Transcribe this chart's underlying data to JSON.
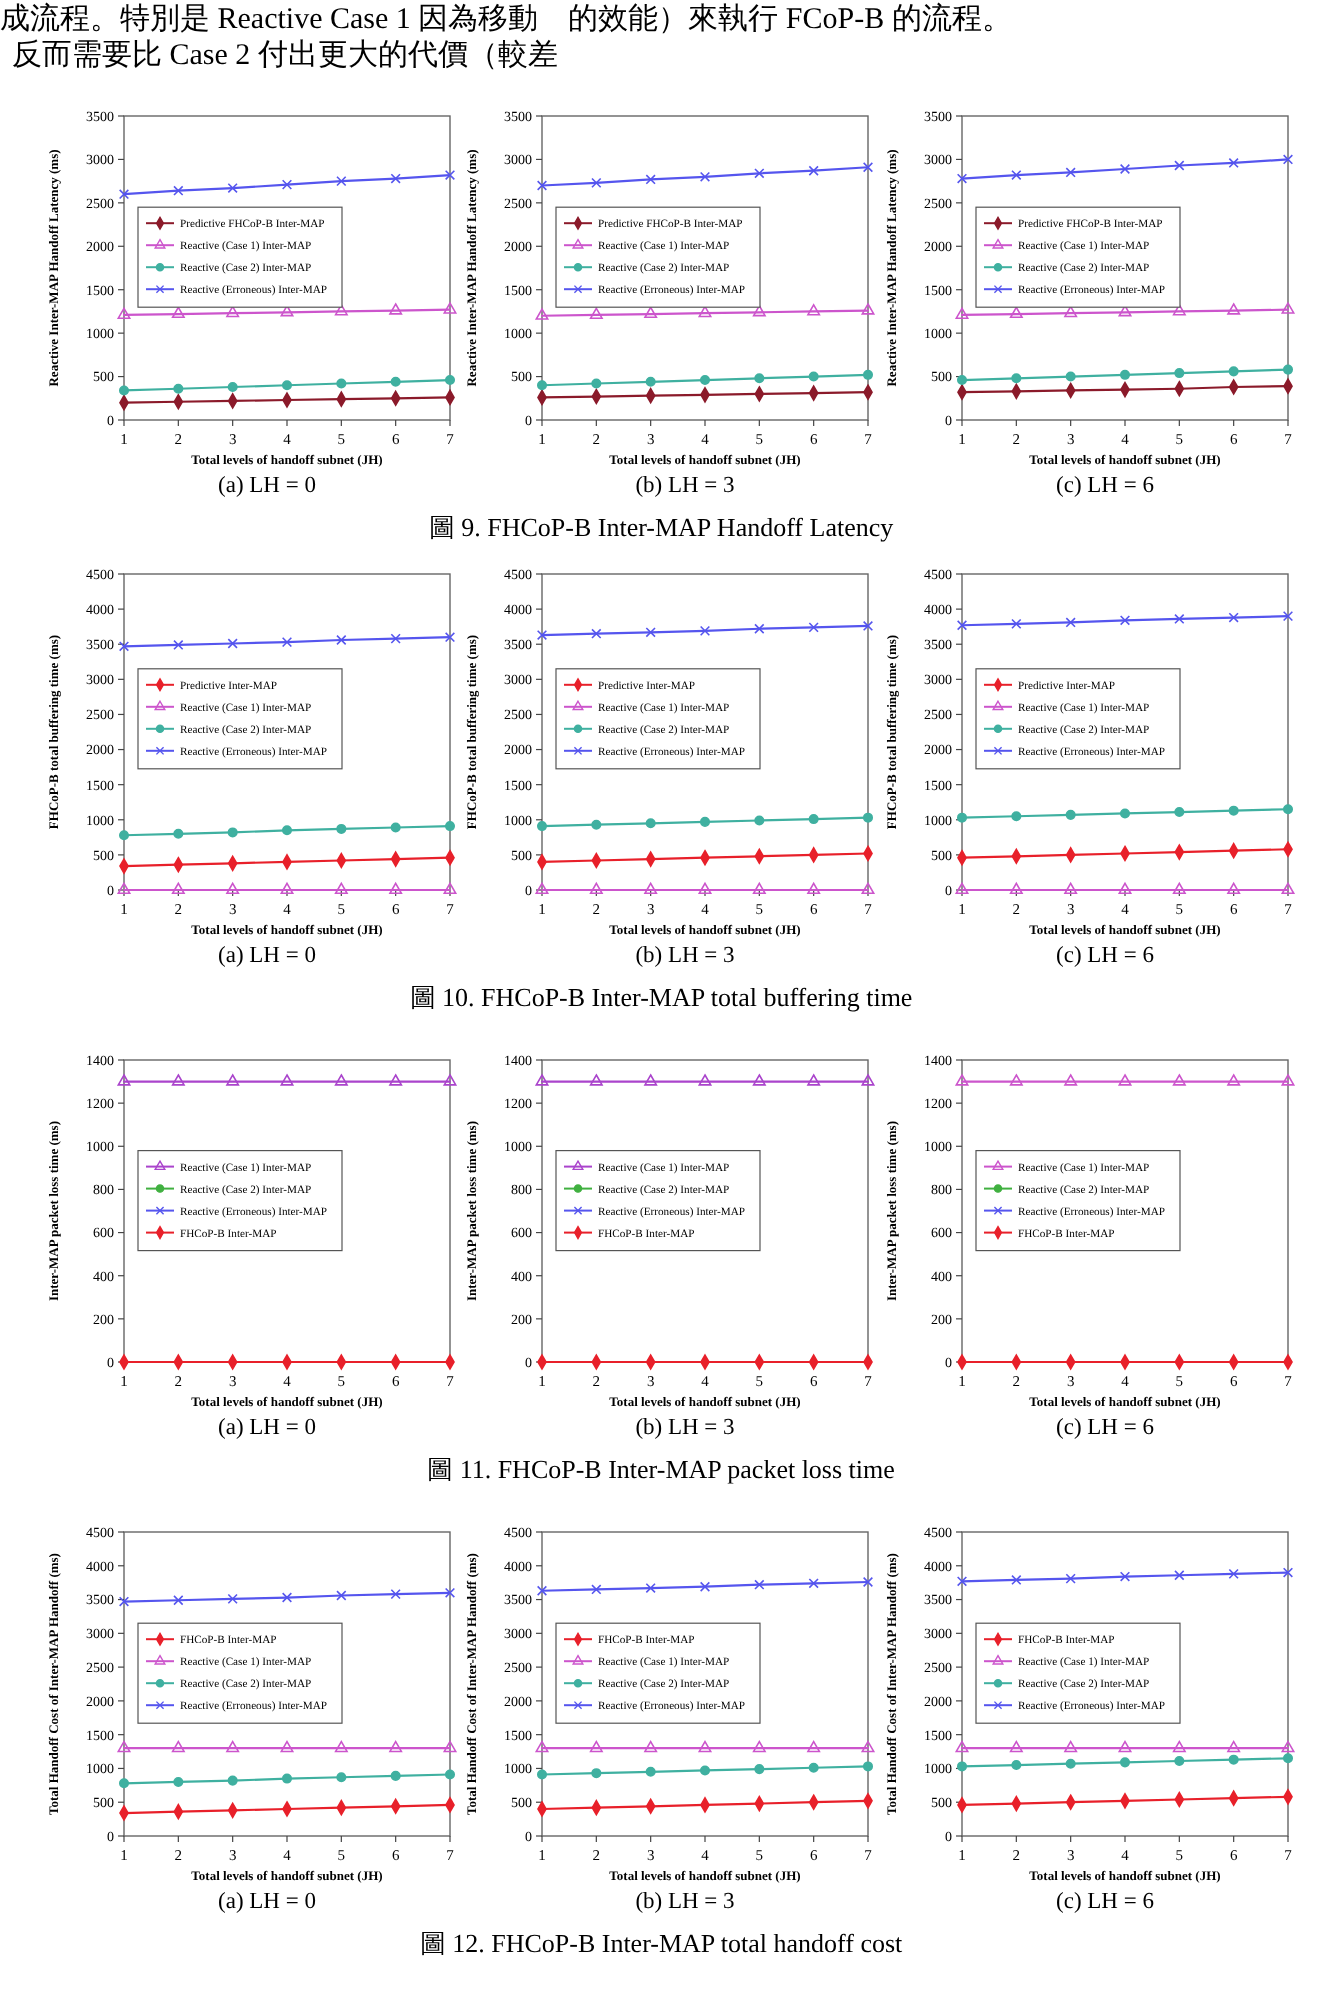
{
  "chart_data": [
    {
      "type": "other",
      "annotations": [
        "成流程。特別是 Reactive Case 1 因為移動　的效能）來執行 FCoP-B 的流程。",
        "反而需要比 Case 2 付出更大的代價（較差"
      ]
    },
    {
      "type": "line",
      "subtitle": "(a) LH = 0",
      "xlabel": "Total levels of handoff subnet (JH)",
      "ylabel": "Reactive Inter-MAP Handoff Latency (ms)",
      "x": [
        1,
        2,
        3,
        4,
        5,
        6,
        7
      ],
      "xlim": [
        1,
        7
      ],
      "xticks": [
        1,
        2,
        3,
        4,
        5,
        6,
        7
      ],
      "ylim": [
        0,
        3500
      ],
      "yticks": [
        0,
        500,
        1000,
        1500,
        2000,
        2500,
        3000,
        3500
      ],
      "legend": "center left",
      "series": [
        {
          "name": "Predictive FHCoP-B Inter-MAP",
          "color": "#8b1a2a",
          "marker": "diamond",
          "values": [
            200,
            210,
            220,
            230,
            240,
            250,
            260
          ]
        },
        {
          "name": "Reactive (Case 1) Inter-MAP",
          "color": "#cc55cc",
          "marker": "triangle",
          "values": [
            1210,
            1220,
            1230,
            1240,
            1250,
            1260,
            1270
          ]
        },
        {
          "name": "Reactive (Case 2) Inter-MAP",
          "color": "#3fb0a0",
          "marker": "circle",
          "values": [
            340,
            360,
            380,
            400,
            420,
            440,
            460
          ]
        },
        {
          "name": "Reactive (Erroneous) Inter-MAP",
          "color": "#5555ee",
          "marker": "cross",
          "values": [
            2600,
            2640,
            2670,
            2710,
            2750,
            2780,
            2820
          ]
        }
      ]
    },
    {
      "type": "line",
      "subtitle": "(b) LH = 3",
      "xlabel": "Total levels of handoff subnet (JH)",
      "ylabel": "Reactive Inter-MAP Handoff Latency (ms)",
      "x": [
        1,
        2,
        3,
        4,
        5,
        6,
        7
      ],
      "xlim": [
        1,
        7
      ],
      "xticks": [
        1,
        2,
        3,
        4,
        5,
        6,
        7
      ],
      "ylim": [
        0,
        3500
      ],
      "yticks": [
        0,
        500,
        1000,
        1500,
        2000,
        2500,
        3000,
        3500
      ],
      "legend": "center left",
      "annotations": [
        "圖 9. FHCoP-B Inter-MAP Handoff Latency"
      ],
      "series": [
        {
          "name": "Predictive FHCoP-B Inter-MAP",
          "color": "#8b1a2a",
          "marker": "diamond",
          "values": [
            260,
            270,
            280,
            290,
            300,
            310,
            320
          ]
        },
        {
          "name": "Reactive (Case 1) Inter-MAP",
          "color": "#cc55cc",
          "marker": "triangle",
          "values": [
            1200,
            1210,
            1220,
            1230,
            1240,
            1250,
            1260
          ]
        },
        {
          "name": "Reactive (Case 2) Inter-MAP",
          "color": "#3fb0a0",
          "marker": "circle",
          "values": [
            400,
            420,
            440,
            460,
            480,
            500,
            520
          ]
        },
        {
          "name": "Reactive (Erroneous) Inter-MAP",
          "color": "#5555ee",
          "marker": "cross",
          "values": [
            2700,
            2730,
            2770,
            2800,
            2840,
            2870,
            2910
          ]
        }
      ]
    },
    {
      "type": "line",
      "subtitle": "(c) LH = 6",
      "xlabel": "Total levels of handoff subnet (JH)",
      "ylabel": "Reactive Inter-MAP Handoff Latency (ms)",
      "x": [
        1,
        2,
        3,
        4,
        5,
        6,
        7
      ],
      "xlim": [
        1,
        7
      ],
      "xticks": [
        1,
        2,
        3,
        4,
        5,
        6,
        7
      ],
      "ylim": [
        0,
        3500
      ],
      "yticks": [
        0,
        500,
        1000,
        1500,
        2000,
        2500,
        3000,
        3500
      ],
      "legend": "center left",
      "series": [
        {
          "name": "Predictive FHCoP-B Inter-MAP",
          "color": "#8b1a2a",
          "marker": "diamond",
          "values": [
            320,
            330,
            340,
            350,
            360,
            380,
            390
          ]
        },
        {
          "name": "Reactive (Case 1) Inter-MAP",
          "color": "#cc55cc",
          "marker": "triangle",
          "values": [
            1210,
            1220,
            1230,
            1240,
            1250,
            1260,
            1270
          ]
        },
        {
          "name": "Reactive (Case 2) Inter-MAP",
          "color": "#3fb0a0",
          "marker": "circle",
          "values": [
            460,
            480,
            500,
            520,
            540,
            560,
            580
          ]
        },
        {
          "name": "Reactive (Erroneous) Inter-MAP",
          "color": "#5555ee",
          "marker": "cross",
          "values": [
            2780,
            2820,
            2850,
            2890,
            2930,
            2960,
            3000
          ]
        }
      ]
    },
    {
      "type": "line",
      "subtitle": "(a) LH = 0",
      "xlabel": "Total levels of handoff subnet (JH)",
      "ylabel": "FHCoP-B total buffering time (ms)",
      "x": [
        1,
        2,
        3,
        4,
        5,
        6,
        7
      ],
      "xlim": [
        1,
        7
      ],
      "xticks": [
        1,
        2,
        3,
        4,
        5,
        6,
        7
      ],
      "ylim": [
        0,
        4500
      ],
      "yticks": [
        0,
        500,
        1000,
        1500,
        2000,
        2500,
        3000,
        3500,
        4000,
        4500
      ],
      "legend": "center left",
      "series": [
        {
          "name": "Predictive Inter-MAP",
          "color": "#e8202a",
          "marker": "diamond",
          "values": [
            340,
            360,
            380,
            400,
            420,
            440,
            460
          ]
        },
        {
          "name": "Reactive (Case 1) Inter-MAP",
          "color": "#cc55cc",
          "marker": "triangle",
          "values": [
            0,
            0,
            0,
            0,
            0,
            0,
            0
          ]
        },
        {
          "name": "Reactive (Case 2) Inter-MAP",
          "color": "#3fb0a0",
          "marker": "circle",
          "values": [
            780,
            800,
            820,
            850,
            870,
            890,
            910
          ]
        },
        {
          "name": "Reactive (Erroneous) Inter-MAP",
          "color": "#5555ee",
          "marker": "cross",
          "values": [
            3470,
            3490,
            3510,
            3530,
            3560,
            3580,
            3600
          ]
        }
      ]
    },
    {
      "type": "line",
      "subtitle": "(b) LH = 3",
      "xlabel": "Total levels of handoff subnet (JH)",
      "ylabel": "FHCoP-B total buffering time (ms)",
      "x": [
        1,
        2,
        3,
        4,
        5,
        6,
        7
      ],
      "xlim": [
        1,
        7
      ],
      "xticks": [
        1,
        2,
        3,
        4,
        5,
        6,
        7
      ],
      "ylim": [
        0,
        4500
      ],
      "yticks": [
        0,
        500,
        1000,
        1500,
        2000,
        2500,
        3000,
        3500,
        4000,
        4500
      ],
      "legend": "center left",
      "annotations": [
        "圖 10. FHCoP-B Inter-MAP total buffering time"
      ],
      "series": [
        {
          "name": "Predictive Inter-MAP",
          "color": "#e8202a",
          "marker": "diamond",
          "values": [
            400,
            420,
            440,
            460,
            480,
            500,
            520
          ]
        },
        {
          "name": "Reactive (Case 1) Inter-MAP",
          "color": "#cc55cc",
          "marker": "triangle",
          "values": [
            0,
            0,
            0,
            0,
            0,
            0,
            0
          ]
        },
        {
          "name": "Reactive (Case 2) Inter-MAP",
          "color": "#3fb0a0",
          "marker": "circle",
          "values": [
            910,
            930,
            950,
            970,
            990,
            1010,
            1030
          ]
        },
        {
          "name": "Reactive (Erroneous) Inter-MAP",
          "color": "#5555ee",
          "marker": "cross",
          "values": [
            3630,
            3650,
            3670,
            3690,
            3720,
            3740,
            3760
          ]
        }
      ]
    },
    {
      "type": "line",
      "subtitle": "(c) LH = 6",
      "xlabel": "Total levels of handoff subnet (JH)",
      "ylabel": "FHCoP-B total buffering time (ms)",
      "x": [
        1,
        2,
        3,
        4,
        5,
        6,
        7
      ],
      "xlim": [
        1,
        7
      ],
      "xticks": [
        1,
        2,
        3,
        4,
        5,
        6,
        7
      ],
      "ylim": [
        0,
        4500
      ],
      "yticks": [
        0,
        500,
        1000,
        1500,
        2000,
        2500,
        3000,
        3500,
        4000,
        4500
      ],
      "legend": "center left",
      "series": [
        {
          "name": "Predictive Inter-MAP",
          "color": "#e8202a",
          "marker": "diamond",
          "values": [
            460,
            480,
            500,
            520,
            540,
            560,
            580
          ]
        },
        {
          "name": "Reactive (Case 1) Inter-MAP",
          "color": "#cc55cc",
          "marker": "triangle",
          "values": [
            0,
            0,
            0,
            0,
            0,
            0,
            0
          ]
        },
        {
          "name": "Reactive (Case 2) Inter-MAP",
          "color": "#3fb0a0",
          "marker": "circle",
          "values": [
            1030,
            1050,
            1070,
            1090,
            1110,
            1130,
            1150
          ]
        },
        {
          "name": "Reactive (Erroneous) Inter-MAP",
          "color": "#5555ee",
          "marker": "cross",
          "values": [
            3770,
            3790,
            3810,
            3840,
            3860,
            3880,
            3900
          ]
        }
      ]
    },
    {
      "type": "line",
      "subtitle": "(a) LH = 0",
      "xlabel": "Total levels of handoff subnet (JH)",
      "ylabel": "Inter-MAP packet loss time (ms)",
      "x": [
        1,
        2,
        3,
        4,
        5,
        6,
        7
      ],
      "xlim": [
        1,
        7
      ],
      "xticks": [
        1,
        2,
        3,
        4,
        5,
        6,
        7
      ],
      "ylim": [
        0,
        1400
      ],
      "yticks": [
        0,
        200,
        400,
        600,
        800,
        1000,
        1200,
        1400
      ],
      "legend": "center left",
      "series": [
        {
          "name": "Reactive (Case 1) Inter-MAP",
          "color": "#aa44cc",
          "marker": "triangle",
          "values": [
            1300,
            1300,
            1300,
            1300,
            1300,
            1300,
            1300
          ]
        },
        {
          "name": "Reactive (Case 2) Inter-MAP",
          "color": "#40b040",
          "marker": "circle",
          "values": [
            null,
            null,
            null,
            null,
            null,
            null,
            null
          ]
        },
        {
          "name": "Reactive (Erroneous) Inter-MAP",
          "color": "#5555ee",
          "marker": "cross",
          "values": [
            null,
            null,
            null,
            null,
            null,
            null,
            null
          ]
        },
        {
          "name": "FHCoP-B Inter-MAP",
          "color": "#e8202a",
          "marker": "diamond",
          "values": [
            0,
            0,
            0,
            0,
            0,
            0,
            0
          ]
        }
      ]
    },
    {
      "type": "line",
      "subtitle": "(b) LH = 3",
      "xlabel": "Total levels of handoff subnet (JH)",
      "ylabel": "Inter-MAP packet loss time (ms)",
      "x": [
        1,
        2,
        3,
        4,
        5,
        6,
        7
      ],
      "xlim": [
        1,
        7
      ],
      "xticks": [
        1,
        2,
        3,
        4,
        5,
        6,
        7
      ],
      "ylim": [
        0,
        1400
      ],
      "yticks": [
        0,
        200,
        400,
        600,
        800,
        1000,
        1200,
        1400
      ],
      "legend": "center left",
      "annotations": [
        "圖 11. FHCoP-B Inter-MAP packet loss time"
      ],
      "series": [
        {
          "name": "Reactive (Case 1) Inter-MAP",
          "color": "#aa44cc",
          "marker": "triangle",
          "values": [
            1300,
            1300,
            1300,
            1300,
            1300,
            1300,
            1300
          ]
        },
        {
          "name": "Reactive (Case 2) Inter-MAP",
          "color": "#40b040",
          "marker": "circle",
          "values": [
            null,
            null,
            null,
            null,
            null,
            null,
            null
          ]
        },
        {
          "name": "Reactive (Erroneous) Inter-MAP",
          "color": "#5555ee",
          "marker": "cross",
          "values": [
            null,
            null,
            null,
            null,
            null,
            null,
            null
          ]
        },
        {
          "name": "FHCoP-B Inter-MAP",
          "color": "#e8202a",
          "marker": "diamond",
          "values": [
            0,
            0,
            0,
            0,
            0,
            0,
            0
          ]
        }
      ]
    },
    {
      "type": "line",
      "subtitle": "(c) LH = 6",
      "xlabel": "Total levels of handoff subnet (JH)",
      "ylabel": "Inter-MAP packet loss time (ms)",
      "x": [
        1,
        2,
        3,
        4,
        5,
        6,
        7
      ],
      "xlim": [
        1,
        7
      ],
      "xticks": [
        1,
        2,
        3,
        4,
        5,
        6,
        7
      ],
      "ylim": [
        0,
        1400
      ],
      "yticks": [
        0,
        200,
        400,
        600,
        800,
        1000,
        1200,
        1400
      ],
      "legend": "center left",
      "series": [
        {
          "name": "Reactive (Case 1) Inter-MAP",
          "color": "#cc55cc",
          "marker": "triangle",
          "values": [
            1300,
            1300,
            1300,
            1300,
            1300,
            1300,
            1300
          ]
        },
        {
          "name": "Reactive (Case 2) Inter-MAP",
          "color": "#40b040",
          "marker": "circle",
          "values": [
            null,
            null,
            null,
            null,
            null,
            null,
            null
          ]
        },
        {
          "name": "Reactive (Erroneous) Inter-MAP",
          "color": "#5555ee",
          "marker": "cross",
          "values": [
            null,
            null,
            null,
            null,
            null,
            null,
            null
          ]
        },
        {
          "name": "FHCoP-B Inter-MAP",
          "color": "#e8202a",
          "marker": "diamond",
          "values": [
            0,
            0,
            0,
            0,
            0,
            0,
            0
          ]
        }
      ]
    },
    {
      "type": "line",
      "subtitle": "(a) LH = 0",
      "xlabel": "Total levels of handoff subnet (JH)",
      "ylabel": "Total Handoff Cost of Inter-MAP Handoff (ms)",
      "x": [
        1,
        2,
        3,
        4,
        5,
        6,
        7
      ],
      "xlim": [
        1,
        7
      ],
      "xticks": [
        1,
        2,
        3,
        4,
        5,
        6,
        7
      ],
      "ylim": [
        0,
        4500
      ],
      "yticks": [
        0,
        500,
        1000,
        1500,
        2000,
        2500,
        3000,
        3500,
        4000,
        4500
      ],
      "legend": "center left",
      "series": [
        {
          "name": "FHCoP-B Inter-MAP",
          "color": "#e8202a",
          "marker": "diamond",
          "values": [
            340,
            360,
            380,
            400,
            420,
            440,
            460
          ]
        },
        {
          "name": "Reactive (Case 1) Inter-MAP",
          "color": "#cc55cc",
          "marker": "triangle",
          "values": [
            1300,
            1300,
            1300,
            1300,
            1300,
            1300,
            1300
          ]
        },
        {
          "name": "Reactive (Case 2) Inter-MAP",
          "color": "#3fb0a0",
          "marker": "circle",
          "values": [
            780,
            800,
            820,
            850,
            870,
            890,
            910
          ]
        },
        {
          "name": "Reactive (Erroneous) Inter-MAP",
          "color": "#5555ee",
          "marker": "cross",
          "values": [
            3470,
            3490,
            3510,
            3530,
            3560,
            3580,
            3600
          ]
        }
      ]
    },
    {
      "type": "line",
      "subtitle": "(b) LH = 3",
      "xlabel": "Total levels of handoff subnet (JH)",
      "ylabel": "Total Handoff Cost of Inter-MAP Handoff (ms)",
      "x": [
        1,
        2,
        3,
        4,
        5,
        6,
        7
      ],
      "xlim": [
        1,
        7
      ],
      "xticks": [
        1,
        2,
        3,
        4,
        5,
        6,
        7
      ],
      "ylim": [
        0,
        4500
      ],
      "yticks": [
        0,
        500,
        1000,
        1500,
        2000,
        2500,
        3000,
        3500,
        4000,
        4500
      ],
      "legend": "center left",
      "annotations": [
        "圖 12. FHCoP-B Inter-MAP total handoff cost"
      ],
      "series": [
        {
          "name": "FHCoP-B Inter-MAP",
          "color": "#e8202a",
          "marker": "diamond",
          "values": [
            400,
            420,
            440,
            460,
            480,
            500,
            520
          ]
        },
        {
          "name": "Reactive (Case 1) Inter-MAP",
          "color": "#cc55cc",
          "marker": "triangle",
          "values": [
            1300,
            1300,
            1300,
            1300,
            1300,
            1300,
            1300
          ]
        },
        {
          "name": "Reactive (Case 2) Inter-MAP",
          "color": "#3fb0a0",
          "marker": "circle",
          "values": [
            910,
            930,
            950,
            970,
            990,
            1010,
            1030
          ]
        },
        {
          "name": "Reactive (Erroneous) Inter-MAP",
          "color": "#5555ee",
          "marker": "cross",
          "values": [
            3630,
            3650,
            3670,
            3690,
            3720,
            3740,
            3760
          ]
        }
      ]
    },
    {
      "type": "line",
      "subtitle": "(c) LH = 6",
      "xlabel": "Total levels of handoff subnet (JH)",
      "ylabel": "Total Handoff Cost of Inter-MAP Handoff (ms)",
      "x": [
        1,
        2,
        3,
        4,
        5,
        6,
        7
      ],
      "xlim": [
        1,
        7
      ],
      "xticks": [
        1,
        2,
        3,
        4,
        5,
        6,
        7
      ],
      "ylim": [
        0,
        4500
      ],
      "yticks": [
        0,
        500,
        1000,
        1500,
        2000,
        2500,
        3000,
        3500,
        4000,
        4500
      ],
      "legend": "center left",
      "series": [
        {
          "name": "FHCoP-B Inter-MAP",
          "color": "#e8202a",
          "marker": "diamond",
          "values": [
            460,
            480,
            500,
            520,
            540,
            560,
            580
          ]
        },
        {
          "name": "Reactive (Case 1) Inter-MAP",
          "color": "#cc55cc",
          "marker": "triangle",
          "values": [
            1300,
            1300,
            1300,
            1300,
            1300,
            1300,
            1300
          ]
        },
        {
          "name": "Reactive (Case 2) Inter-MAP",
          "color": "#3fb0a0",
          "marker": "circle",
          "values": [
            1030,
            1050,
            1070,
            1090,
            1110,
            1130,
            1150
          ]
        },
        {
          "name": "Reactive (Erroneous) Inter-MAP",
          "color": "#5555ee",
          "marker": "cross",
          "values": [
            3770,
            3790,
            3810,
            3840,
            3860,
            3880,
            3900
          ]
        }
      ]
    }
  ]
}
